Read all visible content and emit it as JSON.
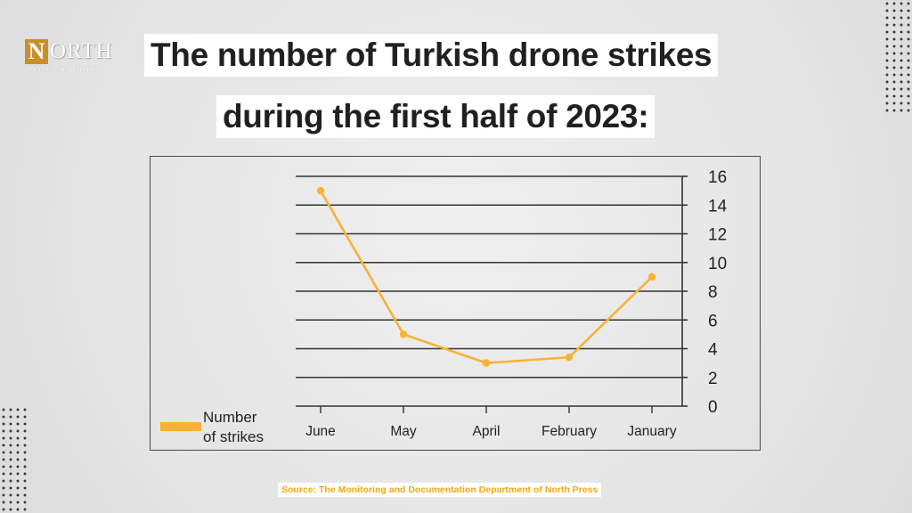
{
  "logo": {
    "letter": "N",
    "word": "ORTH",
    "tagline": "press agency"
  },
  "title": {
    "line1": "The number of Turkish drone strikes",
    "line2": "during the first half of 2023:"
  },
  "source": "Source: The Monitoring and Documentation Department of North Press",
  "colors": {
    "series": "#f9b233",
    "grid": "#333333",
    "title_text": "#202020",
    "source_text": "#f2a90f"
  },
  "chart_data": {
    "type": "line",
    "categories": [
      "June",
      "May",
      "April",
      "February",
      "January"
    ],
    "series": [
      {
        "name": "Number of strikes",
        "values": [
          15,
          5,
          3,
          3.4,
          9
        ]
      }
    ],
    "y_ticks": [
      0,
      2,
      4,
      6,
      8,
      10,
      12,
      14,
      16
    ],
    "ylim": [
      0,
      16
    ],
    "y_axis_side": "right",
    "grid": true,
    "legend": "bottom-left",
    "legend_label": [
      "Number",
      "of strikes"
    ]
  }
}
